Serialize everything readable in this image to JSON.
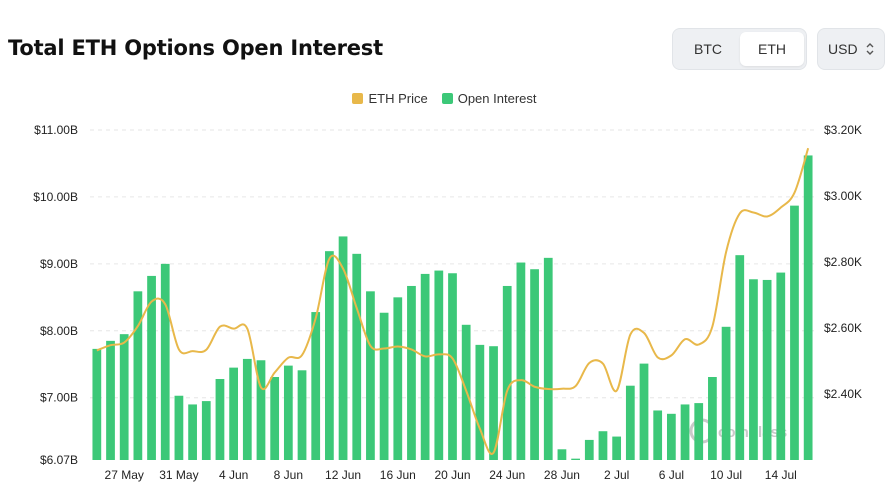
{
  "header": {
    "title": "Total ETH Options Open Interest",
    "toggle": [
      "BTC",
      "ETH"
    ],
    "selected": "ETH",
    "currency": "USD"
  },
  "colors": {
    "bars": "#3cc878",
    "line": "#e8b84a",
    "grid": "#e6e6e6",
    "watermark": "#c9c9c9"
  },
  "watermark": "coinglass",
  "chart_data": {
    "type": "bar",
    "legend": [
      "ETH Price",
      "Open Interest"
    ],
    "legend_position": "top-center",
    "grid": true,
    "left_axis": {
      "min": 6.07,
      "max": 11.0,
      "ticks": [
        6.07,
        7.0,
        8.0,
        9.0,
        10.0,
        11.0
      ],
      "tick_labels": [
        "$6.07B",
        "$7.00B",
        "$8.00B",
        "$9.00B",
        "$10.00B",
        "$11.00B"
      ]
    },
    "right_axis": {
      "min": 2200,
      "max": 3200,
      "ticks": [
        2400,
        2600,
        2800,
        3000,
        3200
      ],
      "tick_labels": [
        "$2.40K",
        "$2.60K",
        "$2.80K",
        "$3.00K",
        "$3.20K"
      ]
    },
    "x_tick_labels": [
      "27 May",
      "31 May",
      "4 Jun",
      "8 Jun",
      "12 Jun",
      "16 Jun",
      "20 Jun",
      "24 Jun",
      "28 Jun",
      "2 Jul",
      "6 Jul",
      "10 Jul",
      "14 Jul"
    ],
    "x_tick_indices": [
      2,
      6,
      10,
      14,
      18,
      22,
      26,
      30,
      34,
      38,
      42,
      46,
      50
    ],
    "series": [
      {
        "name": "Open Interest",
        "axis": "left",
        "type": "bar",
        "values": [
          7.73,
          7.85,
          7.95,
          8.59,
          8.82,
          9.0,
          7.03,
          6.9,
          6.95,
          7.28,
          7.45,
          7.58,
          7.56,
          7.31,
          7.48,
          7.41,
          8.28,
          9.19,
          9.41,
          9.15,
          8.59,
          8.27,
          8.5,
          8.67,
          8.85,
          8.9,
          8.86,
          8.09,
          7.79,
          7.77,
          8.67,
          9.02,
          8.92,
          9.09,
          6.23,
          6.09,
          6.37,
          6.5,
          6.42,
          7.18,
          7.51,
          6.81,
          6.76,
          6.9,
          6.92,
          7.31,
          8.06,
          9.13,
          8.77,
          8.76,
          8.87,
          9.87,
          10.62
        ]
      },
      {
        "name": "ETH Price",
        "axis": "right",
        "type": "line",
        "values": [
          2532,
          2548,
          2556,
          2606,
          2680,
          2672,
          2535,
          2530,
          2534,
          2604,
          2598,
          2598,
          2420,
          2465,
          2510,
          2518,
          2630,
          2810,
          2780,
          2660,
          2546,
          2538,
          2544,
          2535,
          2514,
          2520,
          2508,
          2410,
          2295,
          2222,
          2410,
          2442,
          2422,
          2415,
          2416,
          2424,
          2494,
          2492,
          2410,
          2580,
          2585,
          2511,
          2517,
          2566,
          2550,
          2605,
          2830,
          2947,
          2950,
          2938,
          2965,
          3010,
          3145
        ]
      }
    ]
  }
}
